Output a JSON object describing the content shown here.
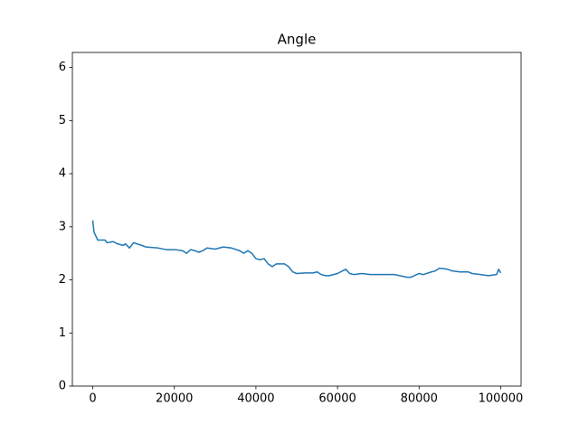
{
  "chart_data": {
    "type": "line",
    "title": "Angle",
    "x": [
      0,
      300,
      600,
      1200,
      3000,
      3500,
      5000,
      6000,
      7500,
      8000,
      9000,
      10000,
      12000,
      13000,
      16000,
      18000,
      20000,
      22000,
      23000,
      24000,
      25000,
      26000,
      27000,
      28000,
      30000,
      32000,
      34000,
      36000,
      37000,
      38000,
      39000,
      40000,
      41000,
      42000,
      43000,
      44000,
      45000,
      47000,
      48000,
      49000,
      50000,
      52000,
      54000,
      55000,
      56000,
      57000,
      58000,
      60000,
      62000,
      63000,
      64000,
      66000,
      68000,
      70000,
      74000,
      77000,
      78000,
      80000,
      81000,
      83000,
      84000,
      85000,
      87000,
      88000,
      90000,
      92000,
      93000,
      95000,
      97000,
      99000,
      99500,
      100000
    ],
    "series": [
      {
        "name": "Angle",
        "color": "#1f77b4",
        "values": [
          3.12,
          2.9,
          2.85,
          2.75,
          2.75,
          2.7,
          2.72,
          2.68,
          2.65,
          2.68,
          2.6,
          2.7,
          2.65,
          2.62,
          2.6,
          2.57,
          2.57,
          2.55,
          2.5,
          2.57,
          2.55,
          2.52,
          2.55,
          2.6,
          2.58,
          2.62,
          2.6,
          2.55,
          2.5,
          2.55,
          2.5,
          2.4,
          2.38,
          2.4,
          2.3,
          2.25,
          2.3,
          2.3,
          2.25,
          2.15,
          2.12,
          2.13,
          2.13,
          2.15,
          2.1,
          2.08,
          2.08,
          2.12,
          2.2,
          2.12,
          2.1,
          2.12,
          2.1,
          2.1,
          2.1,
          2.05,
          2.05,
          2.12,
          2.1,
          2.15,
          2.17,
          2.22,
          2.2,
          2.17,
          2.15,
          2.15,
          2.12,
          2.1,
          2.08,
          2.1,
          2.2,
          2.13
        ]
      }
    ],
    "xlim": [
      -5000,
      105000
    ],
    "ylim": [
      0,
      6.283
    ],
    "xticks": [
      0,
      20000,
      40000,
      60000,
      80000,
      100000
    ],
    "yticks": [
      0,
      1,
      2,
      3,
      4,
      5,
      6
    ]
  }
}
